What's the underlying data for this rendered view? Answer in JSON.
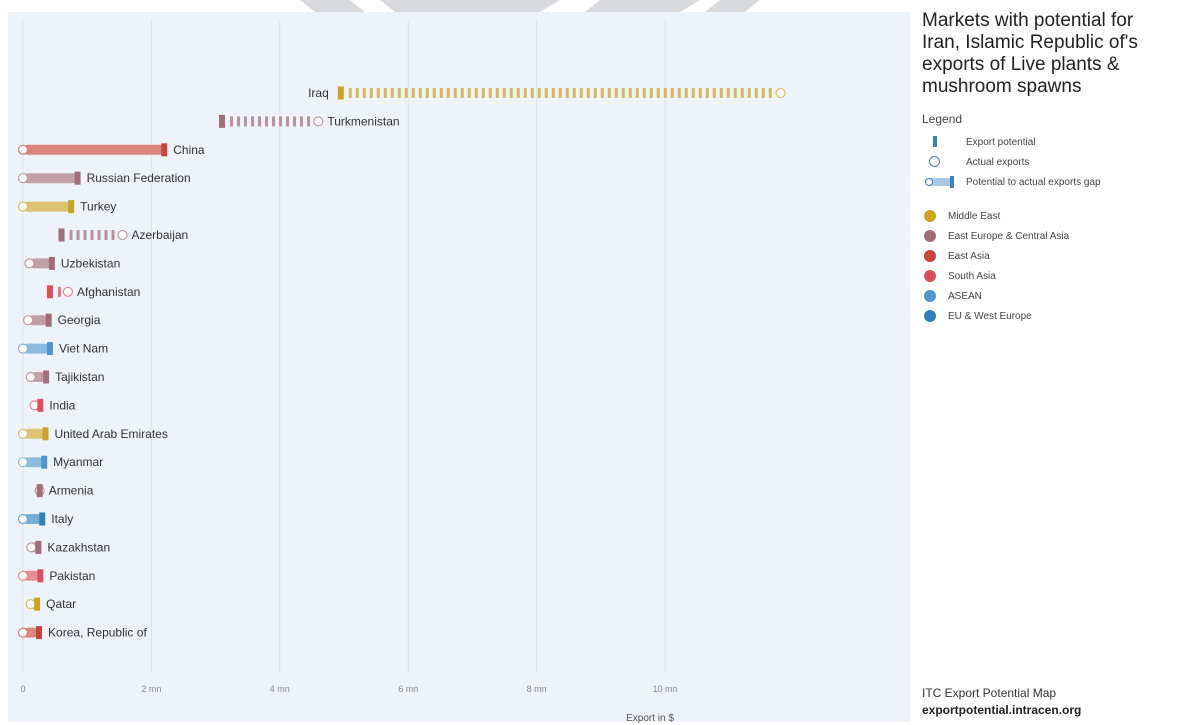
{
  "title": "Markets with potential for Iran, Islamic Republic of's exports of Live plants & mushroom spawns",
  "legend": {
    "heading": "Legend",
    "items": [
      {
        "label": "Export potential",
        "icon": "bar-icon"
      },
      {
        "label": "Actual exports",
        "icon": "circle-icon"
      },
      {
        "label": "Potential to actual exports gap",
        "icon": "gap-icon"
      }
    ],
    "regions": [
      {
        "name": "Middle East",
        "color": "#c9a227"
      },
      {
        "name": "East Europe & Central Asia",
        "color": "#a06e78"
      },
      {
        "name": "East Asia",
        "color": "#c8433a"
      },
      {
        "name": "South Asia",
        "color": "#d94f5c"
      },
      {
        "name": "ASEAN",
        "color": "#4e97cc"
      },
      {
        "name": "EU & West Europe",
        "color": "#2f7fbf"
      }
    ]
  },
  "credits": {
    "line1": "ITC Export Potential Map",
    "line2": "exportpotential.intracen.org"
  },
  "chart_data": {
    "type": "bar",
    "xlabel": "Export in $",
    "xlim": [
      0,
      12.7
    ],
    "xticks": [
      {
        "value": 0,
        "label": "0"
      },
      {
        "value": 2,
        "label": "2 mn"
      },
      {
        "value": 4,
        "label": "4 mn"
      },
      {
        "value": 6,
        "label": "6 mn"
      },
      {
        "value": 8,
        "label": "8 mn"
      },
      {
        "value": 10,
        "label": "10 mn"
      }
    ],
    "grid": true,
    "series": [
      {
        "name": "Export potential"
      },
      {
        "name": "Actual exports"
      }
    ],
    "markets": [
      {
        "name": "Iraq",
        "region": "Middle East",
        "potential": 4.95,
        "actual": 11.8
      },
      {
        "name": "Turkmenistan",
        "region": "East Europe & Central Asia",
        "potential": 3.1,
        "actual": 4.6
      },
      {
        "name": "China",
        "region": "East Asia",
        "potential": 2.2,
        "actual": 0.0
      },
      {
        "name": "Russian Federation",
        "region": "East Europe & Central Asia",
        "potential": 0.85,
        "actual": 0.0
      },
      {
        "name": "Turkey",
        "region": "Middle East",
        "potential": 0.75,
        "actual": 0.0
      },
      {
        "name": "Azerbaijan",
        "region": "East Europe & Central Asia",
        "potential": 0.6,
        "actual": 1.55
      },
      {
        "name": "Uzbekistan",
        "region": "East Europe & Central Asia",
        "potential": 0.45,
        "actual": 0.1
      },
      {
        "name": "Afghanistan",
        "region": "South Asia",
        "potential": 0.42,
        "actual": 0.7
      },
      {
        "name": "Georgia",
        "region": "East Europe & Central Asia",
        "potential": 0.4,
        "actual": 0.08
      },
      {
        "name": "Viet Nam",
        "region": "ASEAN",
        "potential": 0.42,
        "actual": 0.0
      },
      {
        "name": "Tajikistan",
        "region": "East Europe & Central Asia",
        "potential": 0.36,
        "actual": 0.12
      },
      {
        "name": "India",
        "region": "South Asia",
        "potential": 0.27,
        "actual": 0.18
      },
      {
        "name": "United Arab Emirates",
        "region": "Middle East",
        "potential": 0.35,
        "actual": 0.0
      },
      {
        "name": "Myanmar",
        "region": "ASEAN",
        "potential": 0.33,
        "actual": 0.0
      },
      {
        "name": "Armenia",
        "region": "East Europe & Central Asia",
        "potential": 0.26,
        "actual": 0.26
      },
      {
        "name": "Italy",
        "region": "EU & West Europe",
        "potential": 0.3,
        "actual": 0.0
      },
      {
        "name": "Kazakhstan",
        "region": "East Europe & Central Asia",
        "potential": 0.24,
        "actual": 0.13
      },
      {
        "name": "Pakistan",
        "region": "South Asia",
        "potential": 0.27,
        "actual": 0.0
      },
      {
        "name": "Qatar",
        "region": "Middle East",
        "potential": 0.22,
        "actual": 0.12
      },
      {
        "name": "Korea, Republic of",
        "region": "East Asia",
        "potential": 0.25,
        "actual": 0.0
      }
    ]
  }
}
